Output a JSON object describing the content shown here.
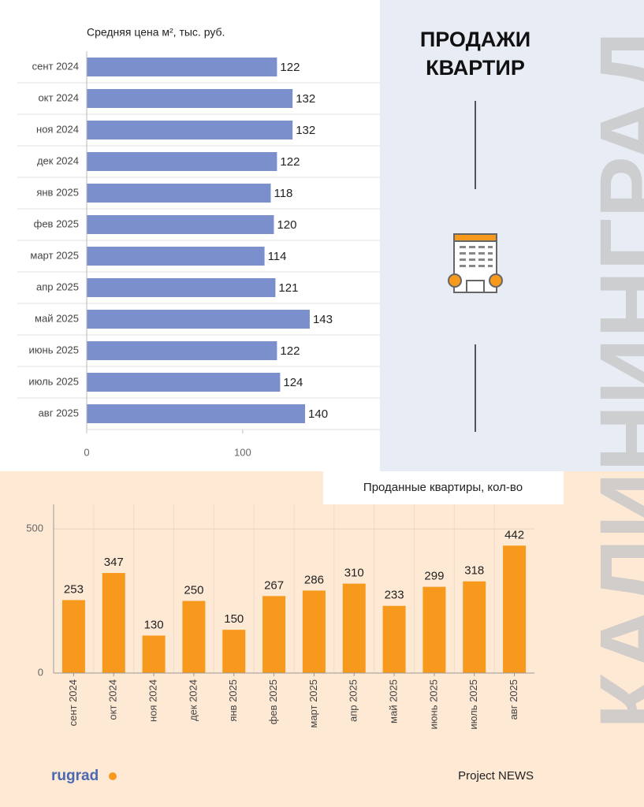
{
  "header": {
    "title_line1": "ПРОДАЖИ",
    "title_line2": "КВАРТИР",
    "city": "КАЛИНИНГРАД"
  },
  "footer": {
    "left": "rugrad",
    "right": "Project NEWS"
  },
  "chart_data": [
    {
      "type": "hbar",
      "title": "Средняя цена м², тыс. руб.",
      "categories": [
        "сент 2024",
        "окт 2024",
        "ноя 2024",
        "дек 2024",
        "янв 2025",
        "фев 2025",
        "март 2025",
        "апр 2025",
        "май 2025",
        "июнь 2025",
        "июль 2025",
        "авг 2025"
      ],
      "values": [
        122,
        132,
        132,
        122,
        118,
        120,
        114,
        121,
        143,
        122,
        124,
        140
      ],
      "color": "#7b8fcc",
      "xlim": [
        0,
        188
      ],
      "xticks": [
        0,
        100
      ]
    },
    {
      "type": "bar",
      "title": "Проданные квартиры, кол-во",
      "categories": [
        "сент 2024",
        "окт 2024",
        "ноя 2024",
        "дек 2024",
        "янв 2025",
        "фев 2025",
        "март 2025",
        "апр 2025",
        "май 2025",
        "июнь 2025",
        "июль 2025",
        "авг 2025"
      ],
      "values": [
        253,
        347,
        130,
        250,
        150,
        267,
        286,
        310,
        233,
        299,
        318,
        442
      ],
      "color": "#f7991c",
      "ylim": [
        0,
        585
      ],
      "yticks": [
        0,
        500
      ],
      "grid": true
    }
  ]
}
